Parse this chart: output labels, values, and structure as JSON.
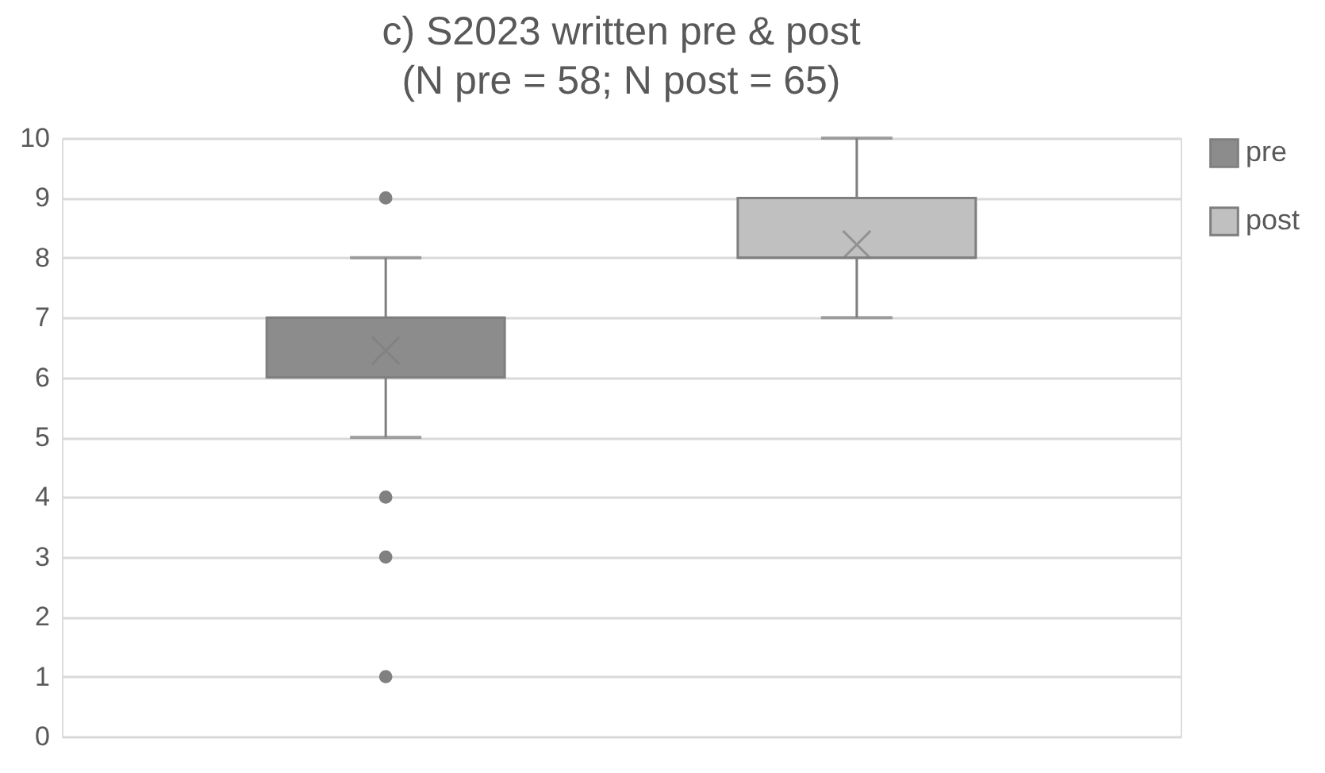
{
  "chart_data": {
    "type": "box",
    "title": "c) S2023 written pre & post",
    "subtitle": "(N pre = 58; N post = 65)",
    "categories": [
      null
    ],
    "series": [
      {
        "name": "pre",
        "color": "#8c8c8c",
        "boxes": [
          {
            "low": 5,
            "q1": 6,
            "median": 7,
            "q3": 7,
            "high": 8,
            "mean": 6.45,
            "outliers": [
              9,
              4,
              3,
              1
            ]
          }
        ]
      },
      {
        "name": "post",
        "color": "#c0c0c0",
        "boxes": [
          {
            "low": 7,
            "q1": 8,
            "median": 8,
            "q3": 9,
            "high": 10,
            "mean": 8.22
          }
        ]
      }
    ],
    "ylim": [
      0,
      10
    ],
    "yticks": [
      0,
      1,
      2,
      3,
      4,
      5,
      6,
      7,
      8,
      9,
      10
    ],
    "grid": "y",
    "legend": "right",
    "tick_labels": "y"
  }
}
